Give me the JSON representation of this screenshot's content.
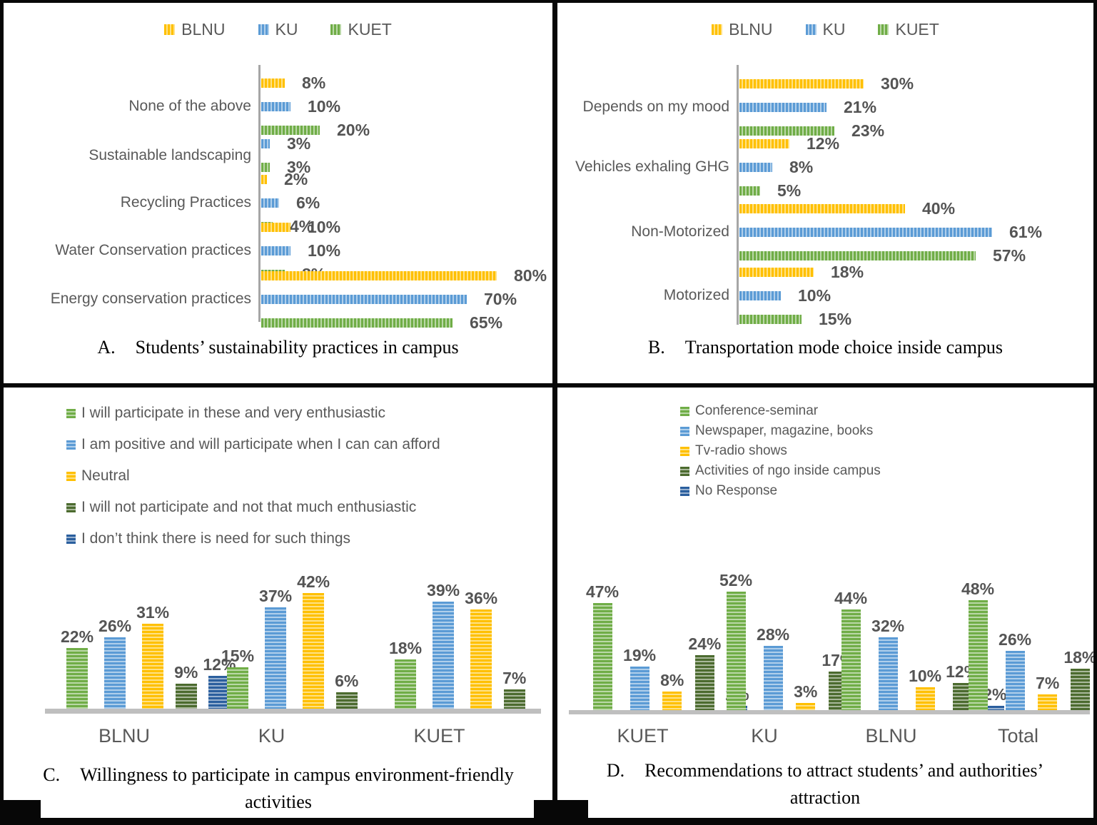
{
  "palette": {
    "yellow": "#FFC000",
    "blue": "#5B9BD5",
    "green": "#70AD47",
    "dark_green": "#4C6B2F",
    "dark_blue": "#2B5F9E",
    "axis_line": "#A6A6A6",
    "baseline": "#BFBFBF",
    "chart_text": "#595959",
    "value_text": "#545454",
    "caption_text": "#000000",
    "border_black": "#070707"
  },
  "chart_data": [
    {
      "id": "A",
      "type": "bar",
      "orientation": "horizontal",
      "caption_letter": "A.",
      "caption": "Students’ sustainability practices in campus",
      "value_suffix": "%",
      "xlim": [
        0,
        100
      ],
      "grid": false,
      "legend_position": "top-center",
      "legend_entries": [
        "BLNU",
        "KU",
        "KUET"
      ],
      "categories": [
        "None of the above",
        "Sustainable landscaping",
        "Recycling Practices",
        "Water Conservation practices",
        "Energy conservation practices"
      ],
      "series": [
        {
          "name": "BLNU",
          "color": "yellow",
          "values": [
            8,
            null,
            2,
            10,
            80
          ]
        },
        {
          "name": "KU",
          "color": "blue",
          "values": [
            10,
            3,
            6,
            10,
            70
          ]
        },
        {
          "name": "KUET",
          "color": "green",
          "values": [
            20,
            3,
            4,
            8,
            65
          ]
        }
      ]
    },
    {
      "id": "B",
      "type": "bar",
      "orientation": "horizontal",
      "caption_letter": "B.",
      "caption": "Transportation mode choice inside campus",
      "value_suffix": "%",
      "xlim": [
        0,
        100
      ],
      "grid": false,
      "legend_position": "top-center",
      "legend_entries": [
        "BLNU",
        "KU",
        "KUET"
      ],
      "categories": [
        "Depends on my mood",
        "Vehicles exhaling GHG",
        "Non-Motorized",
        "Motorized"
      ],
      "series": [
        {
          "name": "BLNU",
          "color": "yellow",
          "values": [
            30,
            12,
            40,
            18
          ]
        },
        {
          "name": "KU",
          "color": "blue",
          "values": [
            21,
            8,
            61,
            10
          ]
        },
        {
          "name": "KUET",
          "color": "green",
          "values": [
            23,
            5,
            57,
            15
          ]
        }
      ]
    },
    {
      "id": "C",
      "type": "bar",
      "orientation": "vertical",
      "caption_letter": "C.",
      "caption": "Willingness to participate in campus environment-friendly activities",
      "value_suffix": "%",
      "ylim": [
        0,
        50
      ],
      "grid": false,
      "legend_position": "top-left",
      "categories": [
        "BLNU",
        "KU",
        "KUET"
      ],
      "series": [
        {
          "name": "I will participate in these and very enthusiastic",
          "color": "green",
          "values": [
            22,
            15,
            18
          ]
        },
        {
          "name": "I am positive and will participate when I can can afford",
          "color": "blue",
          "values": [
            26,
            37,
            39
          ]
        },
        {
          "name": "Neutral",
          "color": "yellow",
          "values": [
            31,
            42,
            36
          ]
        },
        {
          "name": "I will not participate and not that much enthusiastic",
          "color": "dark_green",
          "values": [
            9,
            6,
            7
          ]
        },
        {
          "name": "I don’t think there is need for such things",
          "color": "dark_blue",
          "values": [
            12,
            null,
            null
          ]
        }
      ]
    },
    {
      "id": "D",
      "type": "bar",
      "orientation": "vertical",
      "caption_letter": "D.",
      "caption": "Recommendations to attract students’ and authorities’ attraction",
      "value_suffix": "%",
      "ylim": [
        0,
        60
      ],
      "grid": false,
      "legend_position": "top-left",
      "categories": [
        "KUET",
        "KU",
        "BLNU",
        "Total"
      ],
      "series": [
        {
          "name": "Conference-seminar",
          "color": "green",
          "values": [
            47,
            52,
            44,
            48
          ]
        },
        {
          "name": "Newspaper, magazine, books",
          "color": "blue",
          "values": [
            19,
            28,
            32,
            26
          ]
        },
        {
          "name": "Tv-radio shows",
          "color": "yellow",
          "values": [
            8,
            3,
            10,
            7
          ]
        },
        {
          "name": "Activities of ngo inside campus",
          "color": "dark_green",
          "values": [
            24,
            17,
            12,
            18
          ]
        },
        {
          "name": "No Response",
          "color": "dark_blue",
          "values": [
            2,
            null,
            2,
            2
          ]
        }
      ]
    }
  ]
}
